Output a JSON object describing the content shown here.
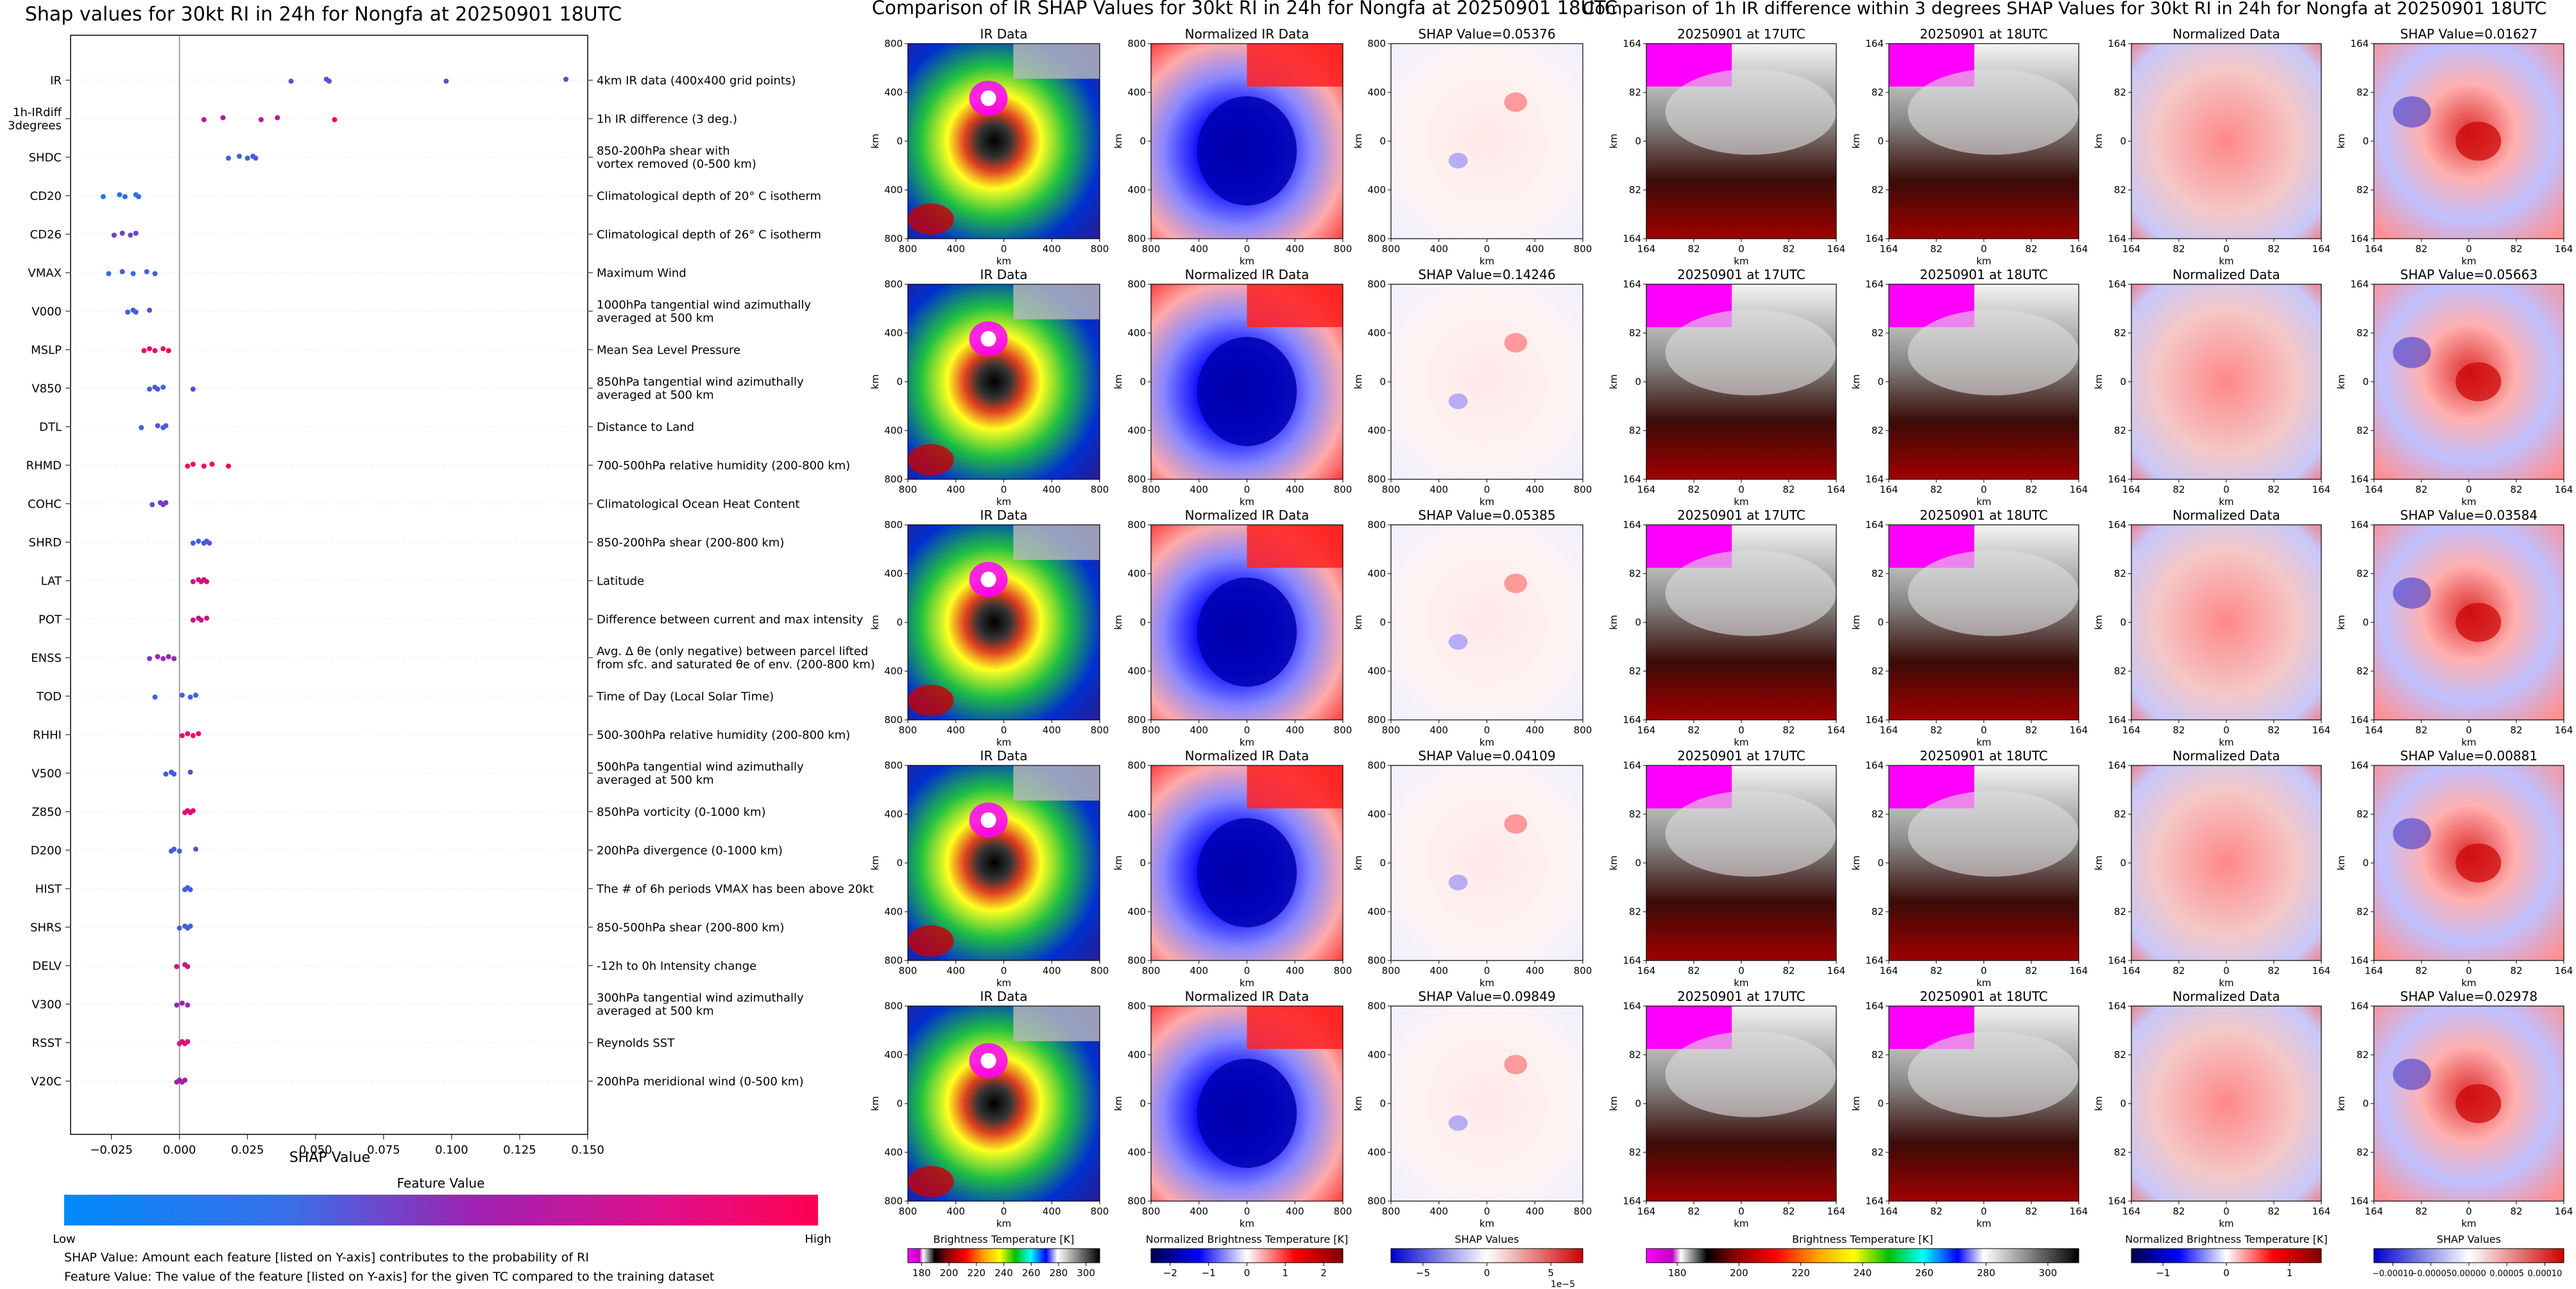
{
  "beeswarm": {
    "title": "Shap values for 30kt RI in 24h for Nongfa at 20250901 18UTC",
    "xlabel": "SHAP Value",
    "colorbar_title": "Feature Value",
    "colorbar_low": "Low",
    "colorbar_high": "High",
    "footnote1": "SHAP Value: Amount each feature [listed on Y-axis] contributes to the probability of RI",
    "footnote2": "Feature Value: The value of the feature [listed on Y-axis] for the given TC compared to the training dataset"
  },
  "ir_section": {
    "title": "Comparison of IR SHAP Values for 30kt RI in 24h for Nongfa at 20250901 18UTC",
    "col_titles": [
      "IR Data",
      "Normalized IR Data"
    ],
    "shap_titles": [
      "SHAP Value=0.05376",
      "SHAP Value=0.14246",
      "SHAP Value=0.05385",
      "SHAP Value=0.04109",
      "SHAP Value=0.09849"
    ],
    "axis_label": "km",
    "cbar_labels": [
      "Brightness Temperature [K]",
      "Normalized Brightness Temperature [K]",
      "SHAP Values"
    ],
    "cbar_exponent": "1e−5"
  },
  "diff_section": {
    "title": "Comparison of 1h IR difference within 3 degrees SHAP Values for 30kt RI in 24h for Nongfa at 20250901 18UTC",
    "col_titles": [
      "20250901 at 17UTC",
      "20250901 at 18UTC",
      "Normalized Data"
    ],
    "shap_titles": [
      "SHAP Value=0.01627",
      "SHAP Value=0.05663",
      "SHAP Value=0.03584",
      "SHAP Value=0.00881",
      "SHAP Value=0.02978"
    ],
    "axis_label": "km",
    "cbar_labels": [
      "Brightness Temperature [K]",
      "Normalized Brightness Temperature [K]",
      "SHAP Values"
    ]
  },
  "colors": {
    "low": "#008bfb",
    "high": "#ff0052",
    "purple": "#a020b0",
    "magenta": "#ff00ff"
  },
  "chart_data": [
    {
      "type": "scatter",
      "title": "Shap values for 30kt RI in 24h for Nongfa at 20250901 18UTC",
      "xlabel": "SHAP Value",
      "ylabel": "",
      "xlim": [
        -0.04,
        0.15
      ],
      "xticks": [
        "−0.025",
        "0.000",
        "0.025",
        "0.050",
        "0.075",
        "0.100",
        "0.125",
        "0.150"
      ],
      "tick_values": [
        -0.025,
        0,
        0.025,
        0.05,
        0.075,
        0.1,
        0.125,
        0.15
      ],
      "features": [
        {
          "name": "IR",
          "desc": "4km IR data (400x400 grid points)",
          "points": [
            [
              0.041,
              0.3
            ],
            [
              0.054,
              0.3
            ],
            [
              0.098,
              0.3
            ],
            [
              0.142,
              0.3
            ],
            [
              0.055,
              0.3
            ]
          ]
        },
        {
          "name": "1h-IRdiff\n3degrees",
          "desc": "1h IR difference (3 deg.)",
          "points": [
            [
              0.009,
              0.6
            ],
            [
              0.016,
              0.6
            ],
            [
              0.03,
              0.6
            ],
            [
              0.036,
              0.6
            ],
            [
              0.057,
              0.9
            ]
          ]
        },
        {
          "name": "SHDC",
          "desc": "850-200hPa shear with\nvortex removed (0-500 km)",
          "points": [
            [
              0.018,
              0.2
            ],
            [
              0.022,
              0.2
            ],
            [
              0.025,
              0.2
            ],
            [
              0.027,
              0.2
            ],
            [
              0.028,
              0.25
            ]
          ]
        },
        {
          "name": "CD20",
          "desc": "Climatological depth of 20° C isotherm",
          "points": [
            [
              -0.028,
              0.1
            ],
            [
              -0.022,
              0.1
            ],
            [
              -0.02,
              0.15
            ],
            [
              -0.016,
              0.1
            ],
            [
              -0.015,
              0.15
            ]
          ]
        },
        {
          "name": "CD26",
          "desc": "Climatological depth of 26° C isotherm",
          "points": [
            [
              -0.024,
              0.35
            ],
            [
              -0.021,
              0.35
            ],
            [
              -0.018,
              0.3
            ],
            [
              -0.016,
              0.35
            ]
          ]
        },
        {
          "name": "VMAX",
          "desc": "Maximum Wind",
          "points": [
            [
              -0.026,
              0.15
            ],
            [
              -0.021,
              0.2
            ],
            [
              -0.017,
              0.15
            ],
            [
              -0.012,
              0.2
            ],
            [
              -0.009,
              0.2
            ]
          ]
        },
        {
          "name": "V000",
          "desc": "1000hPa tangential wind azimuthally\naveraged at 500 km",
          "points": [
            [
              -0.019,
              0.2
            ],
            [
              -0.017,
              0.25
            ],
            [
              -0.016,
              0.2
            ],
            [
              -0.011,
              0.3
            ]
          ]
        },
        {
          "name": "MSLP",
          "desc": "Mean Sea Level Pressure",
          "points": [
            [
              -0.013,
              0.9
            ],
            [
              -0.011,
              0.95
            ],
            [
              -0.009,
              0.85
            ],
            [
              -0.006,
              0.9
            ],
            [
              -0.004,
              0.95
            ]
          ]
        },
        {
          "name": "V850",
          "desc": "850hPa tangential wind azimuthally\naveraged at 500 km",
          "points": [
            [
              -0.011,
              0.2
            ],
            [
              -0.009,
              0.2
            ],
            [
              -0.008,
              0.25
            ],
            [
              -0.006,
              0.2
            ],
            [
              0.005,
              0.3
            ]
          ]
        },
        {
          "name": "DTL",
          "desc": "Distance to Land",
          "points": [
            [
              -0.014,
              0.2
            ],
            [
              -0.008,
              0.25
            ],
            [
              -0.006,
              0.2
            ],
            [
              -0.005,
              0.2
            ]
          ]
        },
        {
          "name": "RHMD",
          "desc": "700-500hPa relative humidity (200-800 km)",
          "points": [
            [
              0.003,
              0.95
            ],
            [
              0.005,
              0.9
            ],
            [
              0.009,
              0.9
            ],
            [
              0.012,
              0.95
            ],
            [
              0.018,
              0.9
            ]
          ]
        },
        {
          "name": "COHC",
          "desc": "Climatological Ocean Heat Content",
          "points": [
            [
              -0.01,
              0.3
            ],
            [
              -0.007,
              0.4
            ],
            [
              -0.006,
              0.35
            ],
            [
              -0.005,
              0.4
            ]
          ]
        },
        {
          "name": "SHRD",
          "desc": "850-200hPa shear (200-800 km)",
          "points": [
            [
              0.005,
              0.2
            ],
            [
              0.007,
              0.2
            ],
            [
              0.009,
              0.25
            ],
            [
              0.01,
              0.2
            ],
            [
              0.011,
              0.25
            ]
          ]
        },
        {
          "name": "LAT",
          "desc": "Latitude",
          "points": [
            [
              0.005,
              0.75
            ],
            [
              0.007,
              0.75
            ],
            [
              0.008,
              0.8
            ],
            [
              0.009,
              0.75
            ],
            [
              0.01,
              0.8
            ]
          ]
        },
        {
          "name": "POT",
          "desc": "Difference between current and max intensity",
          "points": [
            [
              0.005,
              0.7
            ],
            [
              0.007,
              0.7
            ],
            [
              0.008,
              0.7
            ],
            [
              0.01,
              0.75
            ]
          ]
        },
        {
          "name": "ENSS",
          "desc": "Avg. Δ θe (only negative) between parcel lifted\nfrom sfc. and saturated θe of env. (200-800 km)",
          "points": [
            [
              -0.011,
              0.4
            ],
            [
              -0.008,
              0.5
            ],
            [
              -0.006,
              0.45
            ],
            [
              -0.004,
              0.5
            ],
            [
              -0.002,
              0.45
            ]
          ]
        },
        {
          "name": "TOD",
          "desc": "Time of Day (Local Solar Time)",
          "points": [
            [
              -0.009,
              0.2
            ],
            [
              0.001,
              0.2
            ],
            [
              0.004,
              0.2
            ],
            [
              0.006,
              0.2
            ]
          ]
        },
        {
          "name": "RHHI",
          "desc": "500-300hPa relative humidity (200-800 km)",
          "points": [
            [
              0.001,
              0.9
            ],
            [
              0.003,
              0.85
            ],
            [
              0.005,
              0.9
            ],
            [
              0.007,
              0.85
            ]
          ]
        },
        {
          "name": "V500",
          "desc": "500hPa tangential wind azimuthally\naveraged at 500 km",
          "points": [
            [
              -0.005,
              0.2
            ],
            [
              -0.003,
              0.25
            ],
            [
              -0.002,
              0.2
            ],
            [
              0.004,
              0.3
            ]
          ]
        },
        {
          "name": "Z850",
          "desc": "850hPa vorticity (0-1000 km)",
          "points": [
            [
              0.002,
              0.85
            ],
            [
              0.003,
              0.85
            ],
            [
              0.004,
              0.8
            ],
            [
              0.005,
              0.85
            ]
          ]
        },
        {
          "name": "D200",
          "desc": "200hPa divergence (0-1000 km)",
          "points": [
            [
              -0.003,
              0.2
            ],
            [
              -0.002,
              0.2
            ],
            [
              0.0,
              0.2
            ],
            [
              0.006,
              0.25
            ]
          ]
        },
        {
          "name": "HIST",
          "desc": "The # of 6h periods VMAX has been above 20kt",
          "points": [
            [
              0.002,
              0.2
            ],
            [
              0.003,
              0.2
            ],
            [
              0.004,
              0.2
            ]
          ]
        },
        {
          "name": "SHRS",
          "desc": "850-500hPa shear (200-800 km)",
          "points": [
            [
              0.0,
              0.2
            ],
            [
              0.002,
              0.2
            ],
            [
              0.003,
              0.2
            ],
            [
              0.004,
              0.2
            ]
          ]
        },
        {
          "name": "DELV",
          "desc": "-12h to 0h Intensity change",
          "points": [
            [
              -0.001,
              0.7
            ],
            [
              0.002,
              0.75
            ],
            [
              0.003,
              0.7
            ]
          ]
        },
        {
          "name": "V300",
          "desc": "300hPa tangential wind azimuthally\naveraged at 500 km",
          "points": [
            [
              -0.001,
              0.45
            ],
            [
              0.001,
              0.5
            ],
            [
              0.003,
              0.45
            ]
          ]
        },
        {
          "name": "RSST",
          "desc": "Reynolds SST",
          "points": [
            [
              0.0,
              0.8
            ],
            [
              0.001,
              0.8
            ],
            [
              0.002,
              0.85
            ],
            [
              0.003,
              0.8
            ]
          ]
        },
        {
          "name": "V20C",
          "desc": "200hPa meridional wind (0-500 km)",
          "points": [
            [
              -0.001,
              0.55
            ],
            [
              0.0,
              0.5
            ],
            [
              0.001,
              0.55
            ],
            [
              0.002,
              0.5
            ]
          ]
        }
      ]
    },
    {
      "type": "heatmap",
      "title": "Comparison of IR SHAP Values for 30kt RI in 24h for Nongfa at 20250901 18UTC",
      "rows": 5,
      "xticks": [
        "800",
        "400",
        "0",
        "400",
        "800"
      ],
      "yticks": [
        "800",
        "400",
        "0",
        "400",
        "800"
      ],
      "colorbars": [
        {
          "label": "Brightness Temperature [K]",
          "ticks": [
            "180",
            "200",
            "220",
            "240",
            "260",
            "280",
            "300"
          ]
        },
        {
          "label": "Normalized Brightness Temperature [K]",
          "ticks": [
            "−2",
            "−1",
            "0",
            "1",
            "2"
          ]
        },
        {
          "label": "SHAP Values",
          "ticks": [
            "−5",
            "0",
            "5"
          ]
        }
      ]
    },
    {
      "type": "heatmap",
      "title": "Comparison of 1h IR difference within 3 degrees SHAP Values for 30kt RI in 24h for Nongfa at 20250901 18UTC",
      "rows": 5,
      "xticks": [
        "164",
        "82",
        "0",
        "82",
        "164"
      ],
      "yticks": [
        "164",
        "82",
        "0",
        "82",
        "164"
      ],
      "colorbars": [
        {
          "label": "Brightness Temperature [K]",
          "ticks": [
            "180",
            "200",
            "220",
            "240",
            "260",
            "280",
            "300"
          ]
        },
        {
          "label": "Normalized Brightness Temperature [K]",
          "ticks": [
            "−1",
            "0",
            "1"
          ]
        },
        {
          "label": "SHAP Values",
          "ticks": [
            "−0.00010",
            "−0.00005",
            "0.00000",
            "0.00005",
            "0.00010"
          ]
        }
      ]
    }
  ]
}
